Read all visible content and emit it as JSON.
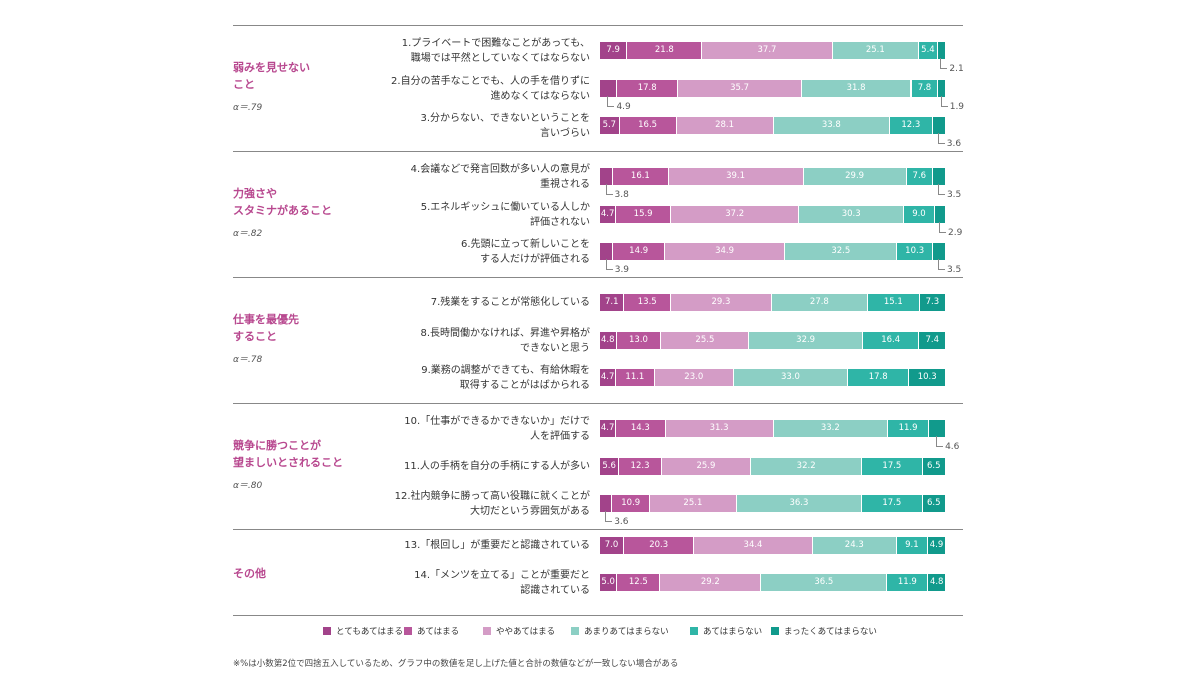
{
  "chart_data": {
    "type": "bar",
    "stacked": "100% horizontal",
    "series": [
      {
        "name": "とてもあてはまる",
        "color": "#a2438a"
      },
      {
        "name": "あてはまる",
        "color": "#b8569b"
      },
      {
        "name": "ややあてはまる",
        "color": "#d49cc6"
      },
      {
        "name": "あまりあてはまらない",
        "color": "#8ccfc4"
      },
      {
        "name": "あてはまらない",
        "color": "#2fb5a7"
      },
      {
        "name": "まったくあてはまらない",
        "color": "#119a8c"
      }
    ],
    "groups": [
      {
        "title": "弱みを見せない\nこと",
        "alpha": "α＝.79",
        "items": [
          {
            "label": "1.プライベートで困難なことがあっても、\n職場では平然としていなくてはならない",
            "values": [
              7.9,
              21.8,
              37.7,
              25.1,
              5.4,
              2.1
            ],
            "labels": [
              "7.9",
              "21.8",
              "37.7",
              "25.1",
              "5.4",
              ""
            ],
            "callouts": [
              {
                "value": "2.1",
                "seg": 5
              }
            ]
          },
          {
            "label": "2.自分の苦手なことでも、人の手を借りずに\n進めなくてはならない",
            "values": [
              4.9,
              17.8,
              35.7,
              31.8,
              7.8,
              1.9
            ],
            "labels": [
              "",
              "17.8",
              "35.7",
              "31.8",
              "7.8",
              ""
            ],
            "callouts": [
              {
                "value": "4.9",
                "seg": 0
              },
              {
                "value": "1.9",
                "seg": 5
              }
            ]
          },
          {
            "label": "3.分からない、できないということを\n言いづらい",
            "values": [
              5.7,
              16.5,
              28.1,
              33.8,
              12.3,
              3.6
            ],
            "labels": [
              "5.7",
              "16.5",
              "28.1",
              "33.8",
              "12.3",
              ""
            ],
            "callouts": [
              {
                "value": "3.6",
                "seg": 5
              }
            ]
          }
        ]
      },
      {
        "title": "力強さや\nスタミナがあること",
        "alpha": "α＝.82",
        "items": [
          {
            "label": "4.会議などで発言回数が多い人の意見が\n重視される",
            "values": [
              3.8,
              16.1,
              39.1,
              29.9,
              7.6,
              3.5
            ],
            "labels": [
              "",
              "16.1",
              "39.1",
              "29.9",
              "7.6",
              ""
            ],
            "callouts": [
              {
                "value": "3.8",
                "seg": 0
              },
              {
                "value": "3.5",
                "seg": 5
              }
            ]
          },
          {
            "label": "5.エネルギッシュに働いている人しか\n評価されない",
            "values": [
              4.7,
              15.9,
              37.2,
              30.3,
              9.0,
              2.9
            ],
            "labels": [
              "4.7",
              "15.9",
              "37.2",
              "30.3",
              "9.0",
              ""
            ],
            "callouts": [
              {
                "value": "2.9",
                "seg": 5
              }
            ]
          },
          {
            "label": "6.先頭に立って新しいことを\nする人だけが評価される",
            "values": [
              3.9,
              14.9,
              34.9,
              32.5,
              10.3,
              3.5
            ],
            "labels": [
              "",
              "14.9",
              "34.9",
              "32.5",
              "10.3",
              ""
            ],
            "callouts": [
              {
                "value": "3.9",
                "seg": 0
              },
              {
                "value": "3.5",
                "seg": 5
              }
            ]
          }
        ]
      },
      {
        "title": "仕事を最優先\nすること",
        "alpha": "α＝.78",
        "items": [
          {
            "label": "7.残業をすることが常態化している",
            "values": [
              7.1,
              13.5,
              29.3,
              27.8,
              15.1,
              7.3
            ],
            "labels": [
              "7.1",
              "13.5",
              "29.3",
              "27.8",
              "15.1",
              "7.3"
            ],
            "callouts": []
          },
          {
            "label": "8.長時間働かなければ、昇進や昇格が\nできないと思う",
            "values": [
              4.8,
              13.0,
              25.5,
              32.9,
              16.4,
              7.4
            ],
            "labels": [
              "4.8",
              "13.0",
              "25.5",
              "32.9",
              "16.4",
              "7.4"
            ],
            "callouts": []
          },
          {
            "label": "9.業務の調整ができても、有給休暇を\n取得することがはばかられる",
            "values": [
              4.7,
              11.1,
              23.0,
              33.0,
              17.8,
              10.3
            ],
            "labels": [
              "4.7",
              "11.1",
              "23.0",
              "33.0",
              "17.8",
              "10.3"
            ],
            "callouts": []
          }
        ]
      },
      {
        "title": "競争に勝つことが\n望ましいとされること",
        "alpha": "α＝.80",
        "items": [
          {
            "label": "10.「仕事ができるかできないか」だけで\n人を評価する",
            "values": [
              4.7,
              14.3,
              31.3,
              33.2,
              11.9,
              4.6
            ],
            "labels": [
              "4.7",
              "14.3",
              "31.3",
              "33.2",
              "11.9",
              ""
            ],
            "callouts": [
              {
                "value": "4.6",
                "seg": 5
              }
            ]
          },
          {
            "label": "11.人の手柄を自分の手柄にする人が多い",
            "values": [
              5.6,
              12.3,
              25.9,
              32.2,
              17.5,
              6.5
            ],
            "labels": [
              "5.6",
              "12.3",
              "25.9",
              "32.2",
              "17.5",
              "6.5"
            ],
            "callouts": []
          },
          {
            "label": "12.社内競争に勝って高い役職に就くことが\n大切だという雰囲気がある",
            "values": [
              3.6,
              10.9,
              25.1,
              36.3,
              17.5,
              6.5
            ],
            "labels": [
              "",
              "10.9",
              "25.1",
              "36.3",
              "17.5",
              "6.5"
            ],
            "callouts": [
              {
                "value": "3.6",
                "seg": 0
              }
            ]
          }
        ]
      },
      {
        "title": "その他",
        "alpha": "",
        "items": [
          {
            "label": "13.「根回し」が重要だと認識されている",
            "values": [
              7.0,
              20.3,
              34.4,
              24.3,
              9.1,
              4.9
            ],
            "labels": [
              "7.0",
              "20.3",
              "34.4",
              "24.3",
              "9.1",
              "4.9"
            ],
            "callouts": []
          },
          {
            "label": "14.「メンツを立てる」ことが重要だと\n認識されている",
            "values": [
              5.0,
              12.5,
              29.2,
              36.5,
              11.9,
              4.8
            ],
            "labels": [
              "5.0",
              "12.5",
              "29.2",
              "36.5",
              "11.9",
              "4.8"
            ],
            "callouts": []
          }
        ]
      }
    ],
    "footnote": "※%は小数第2位で四捨五入しているため、グラフ中の数値を足し上げた値と合計の数値などが一致しない場合がある"
  }
}
